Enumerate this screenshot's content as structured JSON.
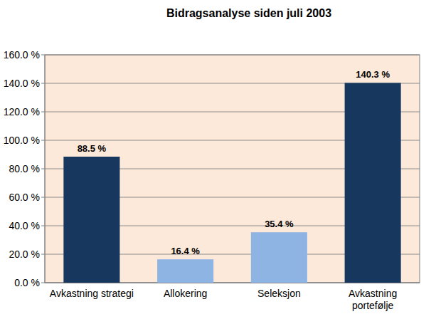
{
  "chart_data": {
    "type": "bar",
    "title": "Bidragsanalyse siden juli 2003",
    "categories": [
      "Avkastning strategi",
      "Allokering",
      "Seleksjon",
      "Avkastning portefølje"
    ],
    "values": [
      88.5,
      16.4,
      35.4,
      140.3
    ],
    "value_labels": [
      "88.5 %",
      "16.4 %",
      "35.4 %",
      "140.3 %"
    ],
    "colors": [
      "#17375e",
      "#8db4e2",
      "#8db4e2",
      "#17375e"
    ],
    "ylim": [
      0,
      160
    ],
    "yticks": [
      {
        "value": 0,
        "label": "0.0 %"
      },
      {
        "value": 20,
        "label": "20.0 %"
      },
      {
        "value": 40,
        "label": "40.0 %"
      },
      {
        "value": 60,
        "label": "60.0 %"
      },
      {
        "value": 80,
        "label": "80.0 %"
      },
      {
        "value": 100,
        "label": "100.0 %"
      },
      {
        "value": 120,
        "label": "120.0 %"
      },
      {
        "value": 140,
        "label": "140.0 %"
      },
      {
        "value": 160,
        "label": "160.0 %"
      }
    ],
    "grid": true,
    "data_labels": true
  }
}
